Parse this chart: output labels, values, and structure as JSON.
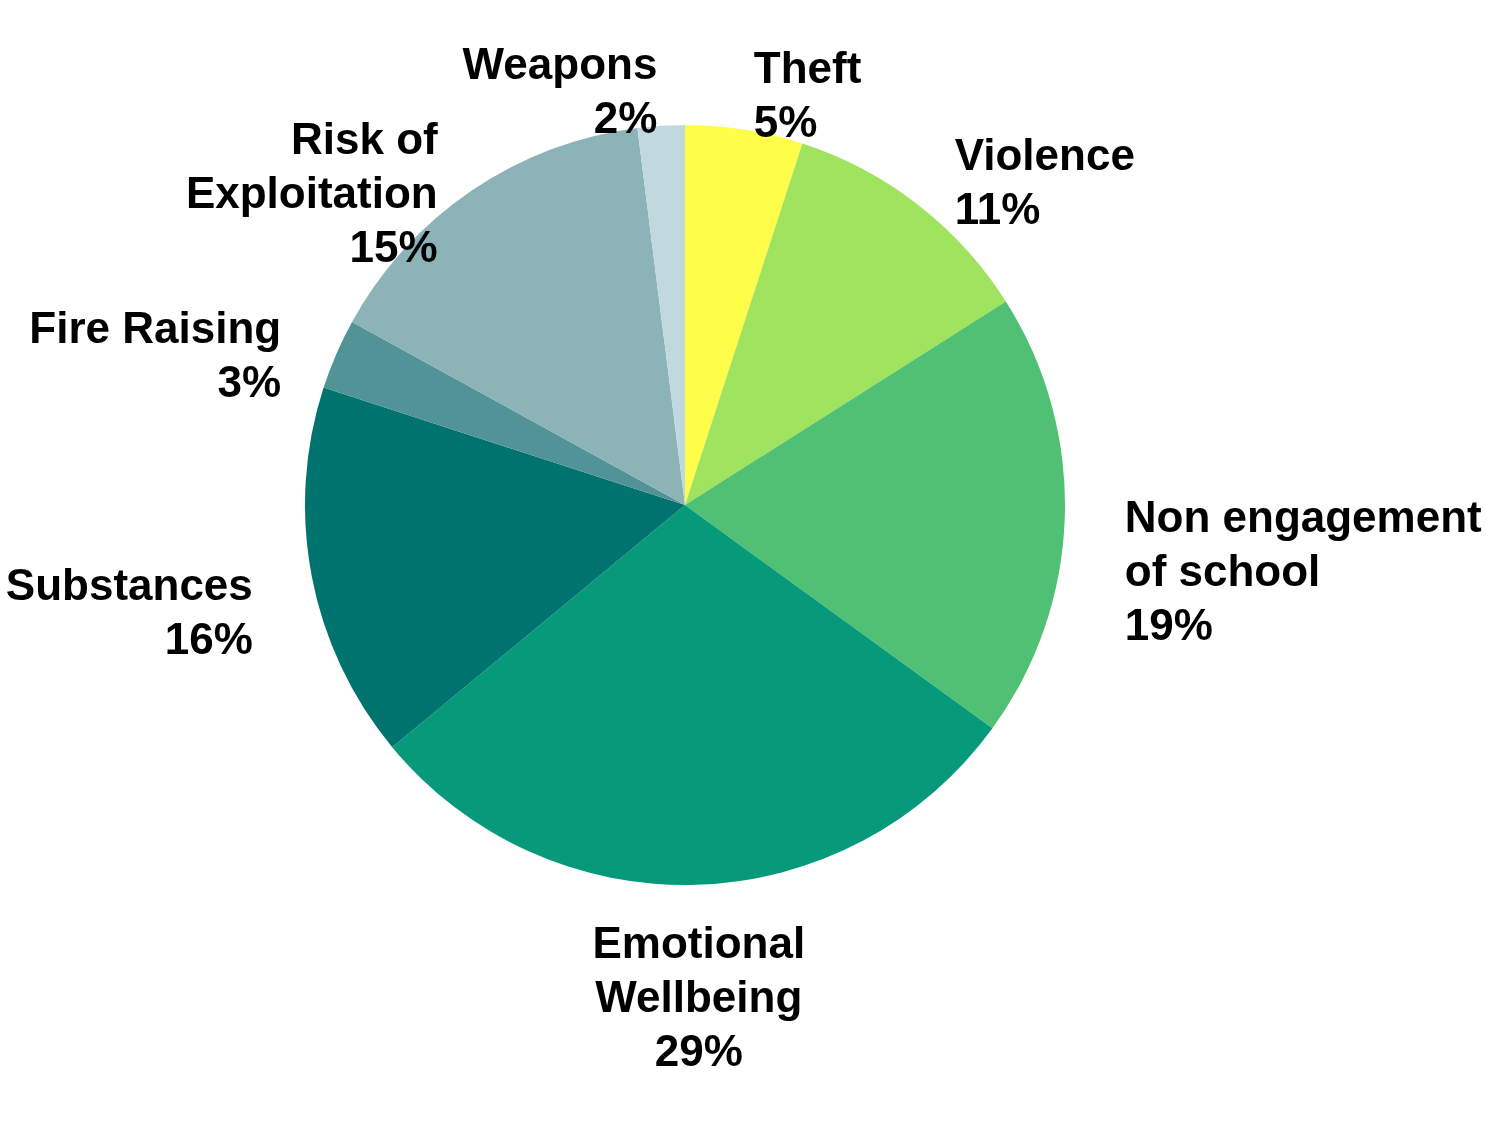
{
  "chart_data": {
    "type": "pie",
    "categories": [
      "Theft",
      "Violence",
      "Non engagement of school",
      "Emotional Wellbeing",
      "Substances",
      "Fire Raising",
      "Risk of Exploitation",
      "Weapons"
    ],
    "values": [
      5,
      11,
      19,
      29,
      16,
      3,
      15,
      2
    ],
    "colors": [
      "#fdfd4a",
      "#a0e35f",
      "#50c174",
      "#069a7a",
      "#00736e",
      "#529397",
      "#8cb4b8",
      "#c2d8df"
    ],
    "value_labels": [
      "5%",
      "11%",
      "19%",
      "29%",
      "16%",
      "3%",
      "15%",
      "2%"
    ],
    "legend": false
  }
}
